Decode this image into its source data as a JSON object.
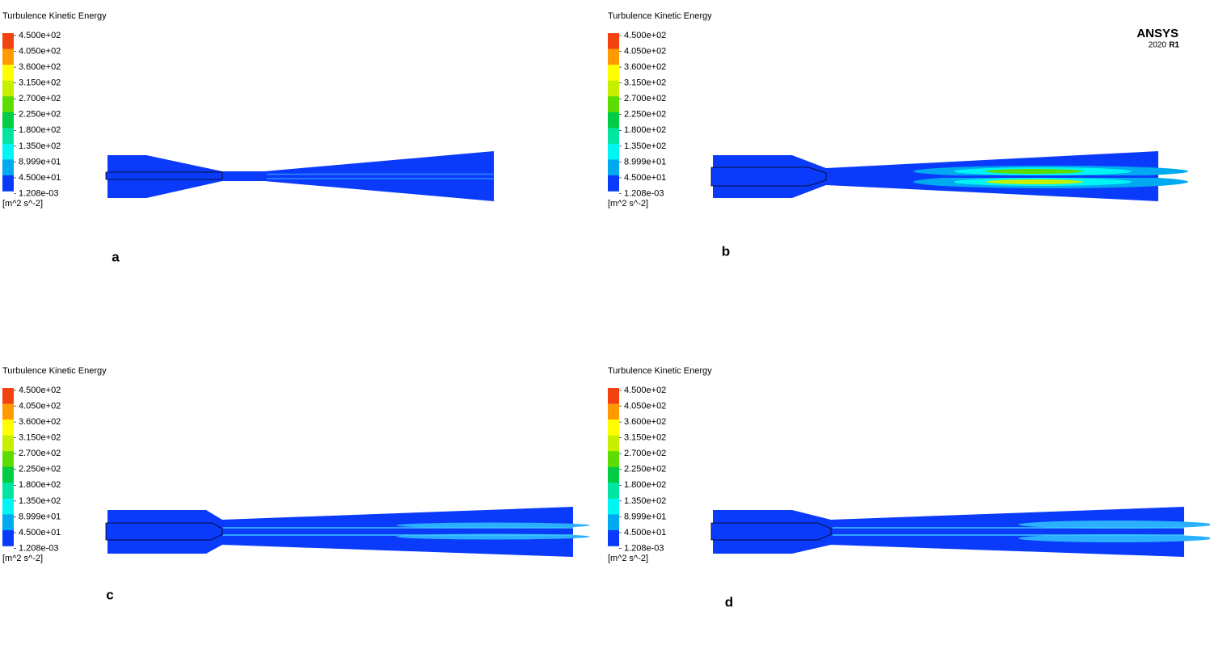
{
  "panels": [
    {
      "title": "Turbulence Kinetic Energy",
      "levels": [
        "4.500e+02",
        "4.050e+02",
        "3.600e+02",
        "3.150e+02",
        "2.700e+02",
        "2.250e+02",
        "1.800e+02",
        "1.350e+02",
        "8.999e+01",
        "4.500e+01",
        "1.208e-03"
      ],
      "unit": "[m^2 s^-2]",
      "letter": "a"
    },
    {
      "title": "Turbulence Kinetic Energy",
      "levels": [
        "4.500e+02",
        "4.050e+02",
        "3.600e+02",
        "3.150e+02",
        "2.700e+02",
        "2.250e+02",
        "1.800e+02",
        "1.350e+02",
        "8.999e+01",
        "4.500e+01",
        "1.208e-03"
      ],
      "unit": "[m^2 s^-2]",
      "letter": "b"
    },
    {
      "title": "Turbulence Kinetic Energy",
      "levels": [
        "4.500e+02",
        "4.050e+02",
        "3.600e+02",
        "3.150e+02",
        "2.700e+02",
        "2.250e+02",
        "1.800e+02",
        "1.350e+02",
        "8.999e+01",
        "4.500e+01",
        "1.208e-03"
      ],
      "unit": "[m^2 s^-2]",
      "letter": "c"
    },
    {
      "title": "Turbulence Kinetic Energy",
      "levels": [
        "4.500e+02",
        "4.050e+02",
        "3.600e+02",
        "3.150e+02",
        "2.700e+02",
        "2.250e+02",
        "1.800e+02",
        "1.350e+02",
        "8.999e+01",
        "4.500e+01",
        "1.208e-03"
      ],
      "unit": "[m^2 s^-2]",
      "letter": "d"
    }
  ],
  "legend_colors": [
    "#f2420f",
    "#ff9a00",
    "#ffff00",
    "#c6f000",
    "#5ddc00",
    "#00cc44",
    "#00e6a0",
    "#00f5f5",
    "#00aaf0",
    "#0b3bfa"
  ],
  "logo": {
    "name": "ANSYS",
    "version": "2020",
    "release": "R1"
  }
}
